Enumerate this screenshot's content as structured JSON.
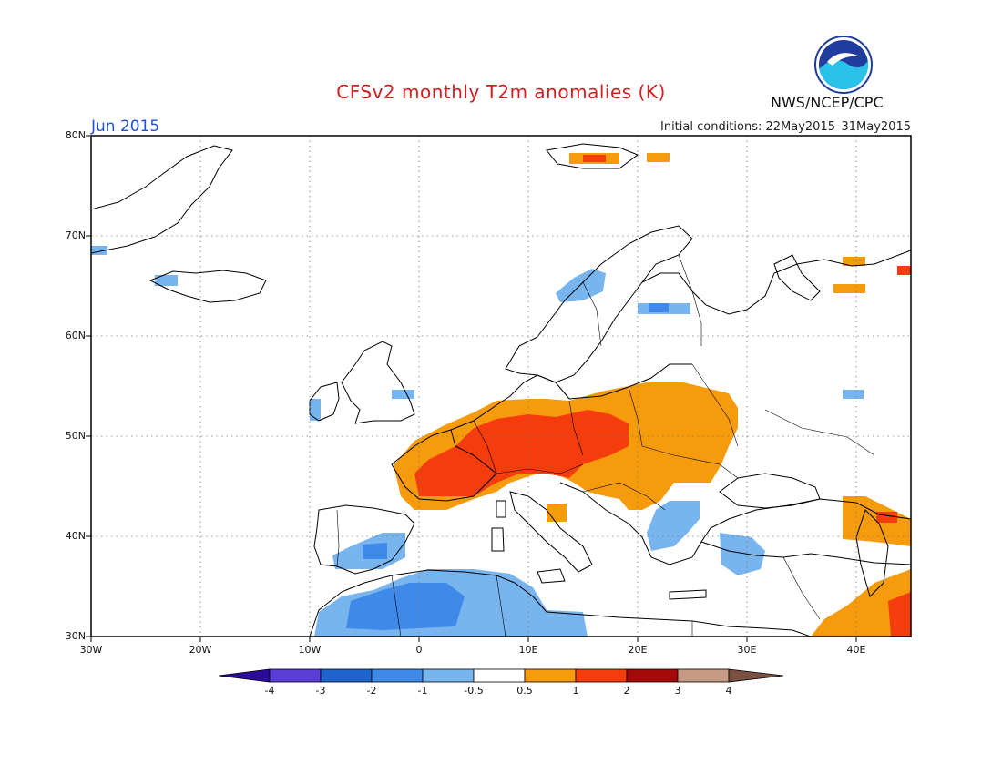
{
  "title": "CFSv2 monthly T2m anomalies (K)",
  "agency": "NWS/NCEP/CPC",
  "logo_text": "NOAA",
  "month": "Jun 2015",
  "initial_conditions": "Initial conditions: 22May2015–31May2015",
  "map": {
    "lon_range": [
      -30,
      45
    ],
    "lat_range": [
      30,
      80
    ],
    "lat_labels": [
      "30N",
      "40N",
      "50N",
      "60N",
      "70N",
      "80N"
    ],
    "lon_labels": [
      "30W",
      "20W",
      "10W",
      "0",
      "10E",
      "20E",
      "30E",
      "40E"
    ],
    "grid": "dotted"
  },
  "colorbar": {
    "levels": [
      "-4",
      "-3",
      "-2",
      "-1",
      "-0.5",
      "0.5",
      "1",
      "2",
      "3",
      "4"
    ],
    "colors": [
      "#2b0a9c",
      "#5a3dd6",
      "#1f63cc",
      "#3f8ae8",
      "#78b4ee",
      "#ffffff",
      "#f59b0c",
      "#f53c0c",
      "#a50a0a",
      "#c79a86",
      "#7a5040"
    ]
  },
  "anomaly_regions": [
    {
      "name": "central-europe-warm",
      "class": "1 to 2",
      "color": "#f53c0c"
    },
    {
      "name": "europe-warm-ring",
      "class": "0.5 to 1",
      "color": "#f59b0c"
    },
    {
      "name": "north-africa-cold",
      "class": "-1 to -0.5",
      "color": "#78b4ee"
    },
    {
      "name": "algeria-cold",
      "class": "-2 to -1",
      "color": "#3f8ae8"
    },
    {
      "name": "iberia-cold",
      "class": "-1 to -0.5",
      "color": "#78b4ee"
    },
    {
      "name": "balkans-cold",
      "class": "-1 to -0.5",
      "color": "#78b4ee"
    },
    {
      "name": "turkey-cold",
      "class": "-1 to -0.5",
      "color": "#78b4ee"
    },
    {
      "name": "middle-east-warm",
      "class": "0.5 to 2",
      "color": "#f59b0c"
    },
    {
      "name": "scandinavia-cold",
      "class": "-1 to -0.5",
      "color": "#78b4ee"
    },
    {
      "name": "svalbard-warm",
      "class": "0.5 to 2",
      "color": "#f53c0c"
    }
  ]
}
